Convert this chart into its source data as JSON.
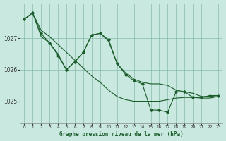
{
  "title": "Graphe pression niveau de la mer (hPa)",
  "bg_color": "#c8e8e0",
  "grid_color": "#88bbaa",
  "line_color": "#1a5c2a",
  "xlim": [
    -0.5,
    23.5
  ],
  "ylim": [
    1024.3,
    1028.1
  ],
  "yticks": [
    1025,
    1026,
    1027
  ],
  "xticks": [
    0,
    1,
    2,
    3,
    4,
    5,
    6,
    7,
    8,
    9,
    10,
    11,
    12,
    13,
    14,
    15,
    16,
    17,
    18,
    19,
    20,
    21,
    22,
    23
  ],
  "s_jagged": [
    1027.6,
    1027.8,
    1027.15,
    1026.85,
    1026.45,
    1026.0,
    1026.25,
    1026.55,
    1027.1,
    1027.15,
    1026.95,
    1026.2,
    1025.85,
    1025.65,
    1025.55,
    1024.72,
    1024.72,
    1024.65,
    1025.3,
    1025.3,
    1025.12,
    1025.12,
    1025.18,
    1025.18
  ],
  "s_straight": [
    1027.6,
    1027.8,
    1027.25,
    1027.05,
    1026.8,
    1026.55,
    1026.3,
    1026.05,
    1025.8,
    1025.6,
    1025.35,
    1025.15,
    1025.05,
    1025.0,
    1025.0,
    1025.0,
    1025.0,
    1025.05,
    1025.1,
    1025.12,
    1025.12,
    1025.1,
    1025.1,
    1025.15
  ],
  "s_wavy": [
    1027.6,
    1027.8,
    1027.05,
    1026.85,
    1026.5,
    1026.0,
    1026.25,
    1026.55,
    1027.1,
    1027.15,
    1026.9,
    1026.2,
    1025.9,
    1025.7,
    1025.6,
    1025.55,
    1025.55,
    1025.5,
    1025.35,
    1025.3,
    1025.25,
    1025.15,
    1025.15,
    1025.18
  ]
}
